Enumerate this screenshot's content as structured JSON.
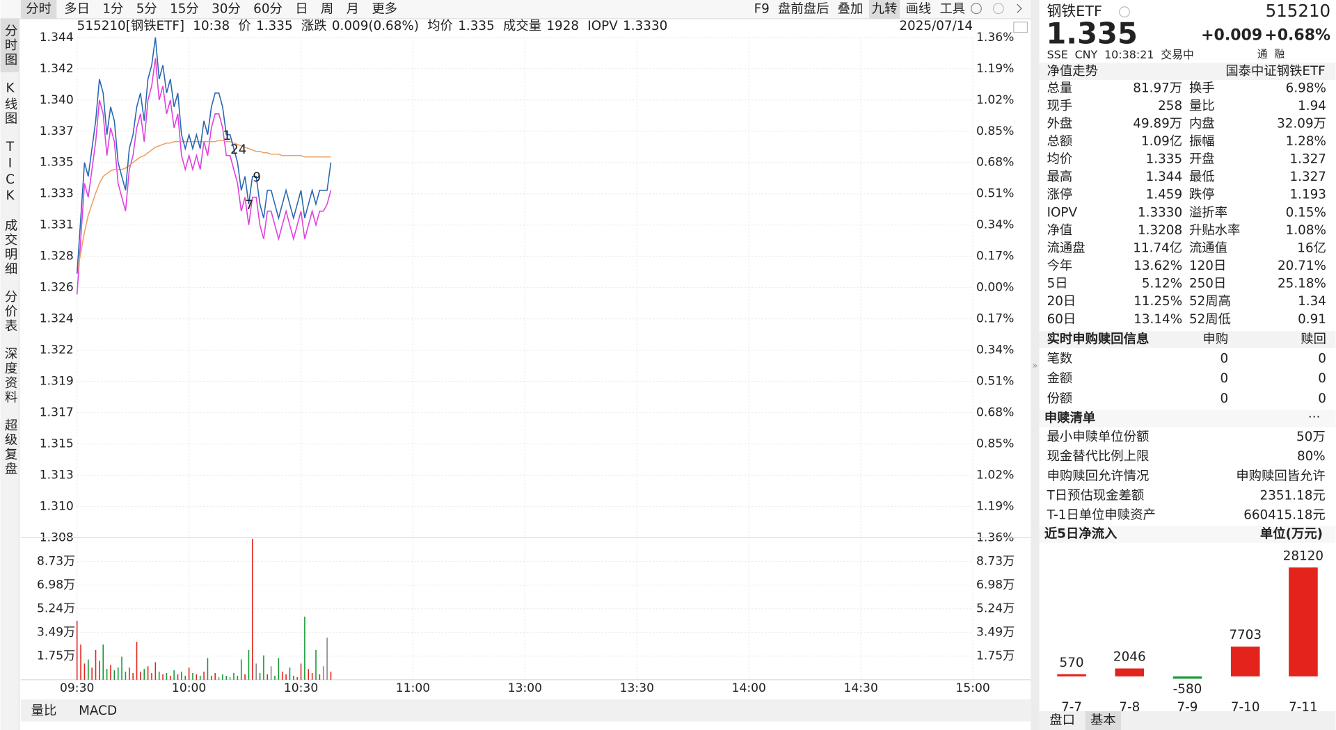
{
  "toolbar": {
    "periods": [
      {
        "label": "分时",
        "active": true
      },
      {
        "label": "多日"
      },
      {
        "label": "1分"
      },
      {
        "label": "5分"
      },
      {
        "label": "15分"
      },
      {
        "label": "30分"
      },
      {
        "label": "60分"
      },
      {
        "label": "日"
      },
      {
        "label": "周"
      },
      {
        "label": "月"
      },
      {
        "label": "更多"
      }
    ],
    "tools": [
      {
        "label": "F9"
      },
      {
        "label": "盘前盘后"
      },
      {
        "label": "叠加"
      },
      {
        "label": "九转",
        "active": true
      },
      {
        "label": "画线"
      },
      {
        "label": "工具"
      }
    ]
  },
  "side_tabs": [
    {
      "label": "分时图",
      "active": true
    },
    {
      "label": "K线图"
    },
    {
      "label": "TICK"
    },
    {
      "label": "成交明细"
    },
    {
      "label": "分价表"
    },
    {
      "label": "深度资料"
    },
    {
      "label": "超级复盘"
    }
  ],
  "header": {
    "code_name": "515210[钢铁ETF]",
    "time": "10:38",
    "price_label": "价",
    "price": "1.335",
    "change_label": "涨跌",
    "change": "0.009(0.68%)",
    "avg_label": "均价",
    "avg": "1.335",
    "volume_label": "成交量",
    "volume": "1928",
    "iopv_label": "IOPV",
    "iopv": "1.3330",
    "date": "2025/07/14"
  },
  "bottom_tabs": [
    {
      "label": "量比"
    },
    {
      "label": "MACD"
    }
  ],
  "chart_data": [
    {
      "type": "line",
      "grid": true,
      "prev_close": 1.326,
      "up_color": "#e4241c",
      "down_color": "#139a35",
      "x": [
        "09:30",
        "09:31",
        "09:32",
        "09:33",
        "09:34",
        "09:35",
        "09:36",
        "09:37",
        "09:38",
        "09:39",
        "09:40",
        "09:41",
        "09:42",
        "09:43",
        "09:44",
        "09:45",
        "09:46",
        "09:47",
        "09:48",
        "09:49",
        "09:50",
        "09:51",
        "09:52",
        "09:53",
        "09:54",
        "09:55",
        "09:56",
        "09:57",
        "09:58",
        "09:59",
        "10:00",
        "10:01",
        "10:02",
        "10:03",
        "10:04",
        "10:05",
        "10:06",
        "10:07",
        "10:08",
        "10:09",
        "10:10",
        "10:11",
        "10:12",
        "10:13",
        "10:14",
        "10:15",
        "10:16",
        "10:17",
        "10:18",
        "10:19",
        "10:20",
        "10:21",
        "10:22",
        "10:23",
        "10:24",
        "10:25",
        "10:26",
        "10:27",
        "10:28",
        "10:29",
        "10:30",
        "10:31",
        "10:32",
        "10:33",
        "10:34",
        "10:35",
        "10:36",
        "10:37",
        "10:38"
      ],
      "sessions": [
        [
          "09:30",
          "11:30"
        ],
        [
          "13:00",
          "15:00"
        ]
      ],
      "xticks": [
        "09:30",
        "10:00",
        "10:30",
        "11:00",
        "13:00",
        "13:30",
        "14:00",
        "14:30",
        "15:00"
      ],
      "ylim": [
        1.308,
        1.344
      ],
      "yticks": [
        {
          "value": 1.344,
          "label": "1.344"
        },
        {
          "value": 1.34175,
          "label": "1.342"
        },
        {
          "value": 1.3395,
          "label": "1.340"
        },
        {
          "value": 1.33725,
          "label": "1.337"
        },
        {
          "value": 1.335,
          "label": "1.335"
        },
        {
          "value": 1.33275,
          "label": "1.333"
        },
        {
          "value": 1.3305,
          "label": "1.331"
        },
        {
          "value": 1.32825,
          "label": "1.328"
        },
        {
          "value": 1.326,
          "label": "1.326"
        },
        {
          "value": 1.32375,
          "label": "1.324"
        },
        {
          "value": 1.3215,
          "label": "1.322"
        },
        {
          "value": 1.31925,
          "label": "1.319"
        },
        {
          "value": 1.317,
          "label": "1.317"
        },
        {
          "value": 1.31475,
          "label": "1.315"
        },
        {
          "value": 1.3125,
          "label": "1.313"
        },
        {
          "value": 1.31025,
          "label": "1.310"
        },
        {
          "value": 1.308,
          "label": "1.308"
        }
      ],
      "y2lim": [
        -1.36,
        1.36
      ],
      "y2ticks": [
        {
          "value": 1.36,
          "label": "1.36%"
        },
        {
          "value": 1.19,
          "label": "1.19%"
        },
        {
          "value": 1.02,
          "label": "1.02%"
        },
        {
          "value": 0.85,
          "label": "0.85%"
        },
        {
          "value": 0.68,
          "label": "0.68%"
        },
        {
          "value": 0.51,
          "label": "0.51%"
        },
        {
          "value": 0.34,
          "label": "0.34%"
        },
        {
          "value": 0.17,
          "label": "0.17%"
        },
        {
          "value": 0,
          "label": "0.00%"
        },
        {
          "value": -0.17,
          "label": "0.17%"
        },
        {
          "value": -0.34,
          "label": "0.34%"
        },
        {
          "value": -0.51,
          "label": "0.51%"
        },
        {
          "value": -0.68,
          "label": "0.68%"
        },
        {
          "value": -0.85,
          "label": "0.85%"
        },
        {
          "value": -1.02,
          "label": "1.02%"
        },
        {
          "value": -1.19,
          "label": "1.19%"
        },
        {
          "value": -1.36,
          "label": "1.36%"
        }
      ],
      "series": [
        {
          "color": "#2a67b1",
          "values": [
            1.327,
            1.331,
            1.335,
            1.334,
            1.336,
            1.338,
            1.341,
            1.34,
            1.337,
            1.339,
            1.338,
            1.335,
            1.334,
            1.333,
            1.336,
            1.337,
            1.339,
            1.34,
            1.338,
            1.341,
            1.342,
            1.344,
            1.341,
            1.342,
            1.34,
            1.341,
            1.339,
            1.34,
            1.337,
            1.336,
            1.337,
            1.336,
            1.337,
            1.336,
            1.338,
            1.337,
            1.339,
            1.34,
            1.34,
            1.339,
            1.337,
            1.337,
            1.336,
            1.335,
            1.333,
            1.334,
            1.332,
            1.334,
            1.334,
            1.332,
            1.331,
            1.333,
            1.333,
            1.332,
            1.331,
            1.332,
            1.333,
            1.332,
            1.331,
            1.332,
            1.333,
            1.331,
            1.332,
            1.333,
            1.332,
            1.333,
            1.333,
            1.333,
            1.335
          ]
        },
        {
          "color": "#f0a060",
          "values": [
            1.327,
            1.3285,
            1.33,
            1.3312,
            1.332,
            1.3328,
            1.3335,
            1.334,
            1.3342,
            1.3344,
            1.3345,
            1.3345,
            1.3345,
            1.3346,
            1.3348,
            1.335,
            1.3352,
            1.3354,
            1.3355,
            1.3357,
            1.3359,
            1.3361,
            1.3362,
            1.3363,
            1.3364,
            1.3364,
            1.3365,
            1.3365,
            1.3365,
            1.3365,
            1.3365,
            1.3365,
            1.3365,
            1.3365,
            1.3365,
            1.3365,
            1.3365,
            1.3365,
            1.3366,
            1.3366,
            1.3365,
            1.3365,
            1.3364,
            1.3363,
            1.3362,
            1.3361,
            1.336,
            1.3359,
            1.3358,
            1.3358,
            1.3357,
            1.3357,
            1.3356,
            1.3356,
            1.3356,
            1.3355,
            1.3355,
            1.3355,
            1.3355,
            1.3355,
            1.3355,
            1.3354,
            1.3354,
            1.3354,
            1.3354,
            1.3354,
            1.3354,
            1.3354,
            1.3354
          ]
        },
        {
          "color": "#e040e0",
          "values": [
            1.3255,
            1.3295,
            1.3335,
            1.3325,
            1.3345,
            1.3365,
            1.3395,
            1.3385,
            1.3355,
            1.3375,
            1.3365,
            1.3335,
            1.3325,
            1.3315,
            1.3345,
            1.3355,
            1.3375,
            1.3385,
            1.3365,
            1.3395,
            1.3405,
            1.3425,
            1.3395,
            1.3405,
            1.3385,
            1.3395,
            1.3375,
            1.3385,
            1.3355,
            1.3345,
            1.3355,
            1.3345,
            1.3355,
            1.3345,
            1.3365,
            1.3355,
            1.3375,
            1.3385,
            1.3385,
            1.3375,
            1.3355,
            1.3355,
            1.3345,
            1.3335,
            1.3315,
            1.3325,
            1.3305,
            1.3325,
            1.3325,
            1.3305,
            1.3295,
            1.3315,
            1.3315,
            1.3305,
            1.3295,
            1.3305,
            1.3315,
            1.3305,
            1.3295,
            1.3305,
            1.3315,
            1.3295,
            1.3305,
            1.3315,
            1.3305,
            1.3315,
            1.3315,
            1.332,
            1.333
          ]
        }
      ],
      "markers": [
        {
          "text": "1",
          "x": "10:10"
        },
        {
          "text": "24",
          "x": "10:12"
        },
        {
          "text": "7",
          "x": "10:16"
        },
        {
          "text": "9",
          "x": "10:18"
        }
      ]
    },
    {
      "type": "bar",
      "flat_color": "#888888",
      "x": [
        "09:30",
        "09:31",
        "09:32",
        "09:33",
        "09:34",
        "09:35",
        "09:36",
        "09:37",
        "09:38",
        "09:39",
        "09:40",
        "09:41",
        "09:42",
        "09:43",
        "09:44",
        "09:45",
        "09:46",
        "09:47",
        "09:48",
        "09:49",
        "09:50",
        "09:51",
        "09:52",
        "09:53",
        "09:54",
        "09:55",
        "09:56",
        "09:57",
        "09:58",
        "09:59",
        "10:00",
        "10:01",
        "10:02",
        "10:03",
        "10:04",
        "10:05",
        "10:06",
        "10:07",
        "10:08",
        "10:09",
        "10:10",
        "10:11",
        "10:12",
        "10:13",
        "10:14",
        "10:15",
        "10:16",
        "10:17",
        "10:18",
        "10:19",
        "10:20",
        "10:21",
        "10:22",
        "10:23",
        "10:24",
        "10:25",
        "10:26",
        "10:27",
        "10:28",
        "10:29",
        "10:30",
        "10:31",
        "10:32",
        "10:33",
        "10:34",
        "10:35",
        "10:36",
        "10:37",
        "10:38"
      ],
      "ylim": [
        0,
        104760
      ],
      "yticks": [
        {
          "value": 87300,
          "label": "8.73万"
        },
        {
          "value": 69840,
          "label": "6.98万"
        },
        {
          "value": 52380,
          "label": "5.24万"
        },
        {
          "value": 34920,
          "label": "3.49万"
        },
        {
          "value": 17460,
          "label": "1.75万"
        }
      ],
      "values": [
        43500,
        26000,
        12000,
        15000,
        9000,
        22000,
        14000,
        26000,
        8000,
        11000,
        7000,
        9000,
        17000,
        6000,
        9000,
        5000,
        28000,
        6000,
        8000,
        10000,
        5000,
        13000,
        6000,
        4000,
        5000,
        3000,
        7000,
        4000,
        6000,
        3000,
        9000,
        5000,
        4000,
        3000,
        6000,
        16000,
        3000,
        5000,
        2000,
        4000,
        3000,
        2000,
        5000,
        3000,
        15000,
        4000,
        22000,
        104000,
        12000,
        5000,
        18000,
        4000,
        10000,
        3000,
        16000,
        6000,
        4000,
        9000,
        3000,
        2000,
        12000,
        46600,
        8000,
        5000,
        22000,
        4000,
        10000,
        31000,
        6000
      ]
    },
    {
      "type": "bar",
      "title": "近5日净流入",
      "unit_label": "单位(万元)",
      "up_color": "#e4241c",
      "down_color": "#139a35",
      "categories": [
        "7-7",
        "7-8",
        "7-9",
        "7-10",
        "7-11"
      ],
      "values": [
        570,
        2046,
        -580,
        7703,
        28120
      ]
    }
  ],
  "quote": {
    "name": "钢铁ETF",
    "code": "515210",
    "price": "1.335",
    "change": "+0.009",
    "change_pct": "+0.68%",
    "exchange": "SSE",
    "currency": "CNY",
    "time": "10:38:21",
    "state": "交易中",
    "badges": [
      "通",
      "融"
    ],
    "nav_trend": "净值走势",
    "fund_name": "国泰中证钢铁ETF",
    "rows": [
      {
        "l": "总量",
        "v": "81.97万",
        "c": "#222",
        "l2": "换手",
        "v2": "6.98%",
        "c2": "#222"
      },
      {
        "l": "现手",
        "v": "258",
        "c": "#222",
        "l2": "量比",
        "v2": "1.94",
        "c2": "#222"
      },
      {
        "l": "外盘",
        "v": "49.89万",
        "c": "#e4241c",
        "l2": "内盘",
        "v2": "32.09万",
        "c2": "#139a35"
      },
      {
        "l": "总额",
        "v": "1.09亿",
        "c": "#222",
        "l2": "振幅",
        "v2": "1.28%",
        "c2": "#222"
      },
      {
        "l": "均价",
        "v": "1.335",
        "c": "#e4241c",
        "l2": "开盘",
        "v2": "1.327",
        "c2": "#e4241c"
      },
      {
        "l": "最高",
        "v": "1.344",
        "c": "#e4241c",
        "l2": "最低",
        "v2": "1.327",
        "c2": "#e4241c"
      },
      {
        "l": "涨停",
        "v": "1.459",
        "c": "#e4241c",
        "l2": "跌停",
        "v2": "1.193",
        "c2": "#139a35"
      },
      {
        "l": "IOPV",
        "v": "1.3330",
        "c": "#222",
        "l2": "溢折率",
        "v2": "0.15%",
        "c2": "#e4241c"
      },
      {
        "l": "净值",
        "v": "1.3208",
        "c": "#e4241c",
        "l2": "升贴水率",
        "v2": "1.08%",
        "c2": "#e4241c"
      },
      {
        "l": "流通盘",
        "v": "11.74亿",
        "c": "#222",
        "l2": "流通值",
        "v2": "16亿",
        "c2": "#222"
      },
      {
        "l": "今年",
        "v": "13.62%",
        "c": "#e4241c",
        "l2": "120日",
        "v2": "20.71%",
        "c2": "#e4241c"
      },
      {
        "l": "5日",
        "v": "5.12%",
        "c": "#e4241c",
        "l2": "250日",
        "v2": "25.18%",
        "c2": "#e4241c"
      },
      {
        "l": "20日",
        "v": "11.25%",
        "c": "#e4241c",
        "l2": "52周高",
        "v2": "1.34",
        "c2": "#222"
      },
      {
        "l": "60日",
        "v": "13.14%",
        "c": "#e4241c",
        "l2": "52周低",
        "v2": "0.91",
        "c2": "#222"
      }
    ],
    "creation": {
      "title": "实时申购赎回信息",
      "cols": [
        "申购",
        "赎回"
      ],
      "rows": [
        {
          "label": "笔数",
          "values": [
            "0",
            "0"
          ]
        },
        {
          "label": "金额",
          "values": [
            "0",
            "0"
          ]
        },
        {
          "label": "份额",
          "values": [
            "0",
            "0"
          ]
        }
      ]
    },
    "basket": {
      "title": "申赎清单",
      "more": "···",
      "items": [
        {
          "label": "最小申赎单位份额",
          "value": "50万"
        },
        {
          "label": "现金替代比例上限",
          "value": "80%"
        },
        {
          "label": "申购赎回允许情况",
          "value": "申购赎回皆允许"
        },
        {
          "label": "T日预估现金差额",
          "value": "2351.18元"
        },
        {
          "label": "T-1日单位申赎资产",
          "value": "660415.18元"
        }
      ]
    },
    "tabs": [
      {
        "label": "盘口"
      },
      {
        "label": "基本",
        "active": true
      }
    ]
  }
}
